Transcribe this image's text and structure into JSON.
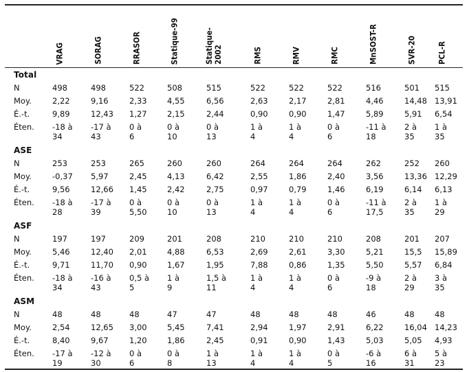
{
  "columns": [
    "VRAG",
    "SORAG",
    "RRASOR",
    "Statique-99",
    "Statique-\n2002",
    "RMS",
    "RMV",
    "RMC",
    "MnSOST-R",
    "SVR-20",
    "PCL-R"
  ],
  "sections": [
    {
      "title": "Total",
      "rows": [
        {
          "label": "N",
          "values": [
            "498",
            "498",
            "522",
            "508",
            "515",
            "522",
            "522",
            "522",
            "516",
            "501",
            "515"
          ]
        },
        {
          "label": "Moy.",
          "values": [
            "2,22",
            "9,16",
            "2,33",
            "4,55",
            "6,56",
            "2,63",
            "2,17",
            "2,81",
            "4,46",
            "14,48",
            "13,91"
          ]
        },
        {
          "label": "É.-t.",
          "values": [
            "9,89",
            "12,43",
            "1,27",
            "2,15",
            "2,44",
            "0,90",
            "0,90",
            "1,47",
            "5,89",
            "5,91",
            "6,54"
          ]
        },
        {
          "label": "Éten.",
          "values": [
            "-18 à\n34",
            "-17 à\n43",
            "0 à\n6",
            "0 à\n10",
            "0 à\n13",
            "1 à\n4",
            "1 à\n4",
            "0 à\n6",
            "-11 à\n18",
            "2 à\n35",
            "1 à\n35"
          ]
        }
      ]
    },
    {
      "title": "ASE",
      "rows": [
        {
          "label": "N",
          "values": [
            "253",
            "253",
            "265",
            "260",
            "260",
            "264",
            "264",
            "264",
            "262",
            "252",
            "260"
          ]
        },
        {
          "label": "Moy.",
          "values": [
            "-0,37",
            "5,97",
            "2,45",
            "4,13",
            "6,42",
            "2,55",
            "1,86",
            "2,40",
            "3,56",
            "13,36",
            "12,29"
          ]
        },
        {
          "label": "É.-t.",
          "values": [
            "9,56",
            "12,66",
            "1,45",
            "2,42",
            "2,75",
            "0,97",
            "0,79",
            "1,46",
            "6,19",
            "6,14",
            "6,13"
          ]
        },
        {
          "label": "Éten.",
          "values": [
            "-18 à\n28",
            "-17 à\n39",
            "0 à\n5,50",
            "0 à\n10",
            "0 à\n13",
            "1 à\n4",
            "1 à\n4",
            "0 à\n6",
            "-11 à\n17,5",
            "2 à\n35",
            "1 à\n29"
          ]
        }
      ]
    },
    {
      "title": "ASF",
      "rows": [
        {
          "label": "N",
          "values": [
            "197",
            "197",
            "209",
            "201",
            "208",
            "210",
            "210",
            "210",
            "208",
            "201",
            "207"
          ]
        },
        {
          "label": "Moy.",
          "values": [
            "5,46",
            "12,40",
            "2,01",
            "4,88",
            "6,53",
            "2,69",
            "2,61",
            "3,30",
            "5,21",
            "15,5",
            "15,89"
          ]
        },
        {
          "label": "É.-t.",
          "values": [
            "9,71",
            "11,70",
            "0,90",
            "1,67",
            "1,95",
            "7,88",
            "0,86",
            "1,35",
            "5,50",
            "5,57",
            "6,84"
          ]
        },
        {
          "label": "Éten.",
          "values": [
            "-18 à\n34",
            "-16 à\n43",
            "0,5 à\n5",
            "1 à\n9",
            "1,5 à\n11",
            "1 à\n4",
            "1 à\n4",
            "0 à\n6",
            "-9 à\n18",
            "2 à\n29",
            "3 à\n35"
          ]
        }
      ]
    },
    {
      "title": "ASM",
      "rows": [
        {
          "label": "N",
          "values": [
            "48",
            "48",
            "48",
            "47",
            "47",
            "48",
            "48",
            "48",
            "46",
            "48",
            "48"
          ]
        },
        {
          "label": "Moy.",
          "values": [
            "2,54",
            "12,65",
            "3,00",
            "5,45",
            "7,41",
            "2,94",
            "1,97",
            "2,91",
            "6,22",
            "16,04",
            "14,23"
          ]
        },
        {
          "label": "É.-t.",
          "values": [
            "8,40",
            "9,67",
            "1,20",
            "1,86",
            "2,45",
            "0,91",
            "0,90",
            "1,43",
            "5,03",
            "5,05",
            "4,93"
          ]
        },
        {
          "label": "Éten.",
          "values": [
            "-17 à\n19",
            "-12 à\n30",
            "0 à\n6",
            "0 à\n8",
            "1 à\n13",
            "1 à\n4",
            "1 à\n4",
            "0 à\n5",
            "-6 à\n16",
            "6 à\n31",
            "5 à\n23"
          ]
        }
      ]
    }
  ]
}
